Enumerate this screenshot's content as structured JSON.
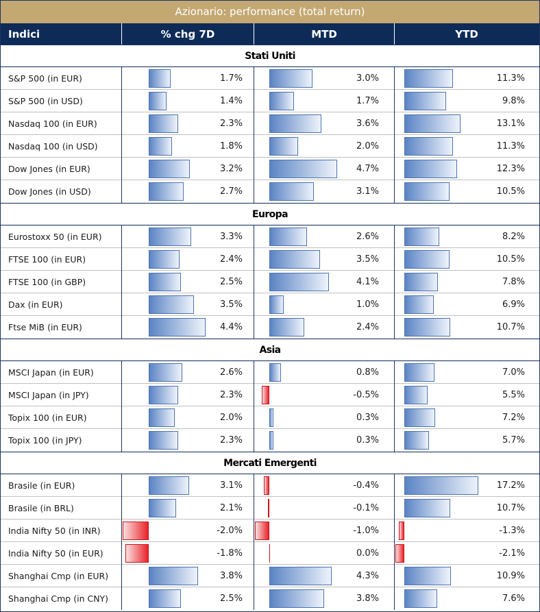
{
  "title": "Azionario: performance (total return)",
  "columns": {
    "label": "Indici",
    "c1": "% chg 7D",
    "c2": "MTD",
    "c3": "YTD"
  },
  "colors": {
    "banner": "#c3a872",
    "header": "#0e2b58",
    "positive": "#5b84c4",
    "negative": "#e8232a"
  },
  "chart_data": {
    "type": "table",
    "title": "Azionario: performance (total return)",
    "unit": "%",
    "columns": [
      "% chg 7D",
      "MTD",
      "YTD"
    ],
    "sections": [
      {
        "name": "Stati Uniti",
        "rows": [
          {
            "label": "S&P 500 (in EUR)",
            "values": [
              1.7,
              3.0,
              11.3
            ],
            "display": [
              "1.7%",
              "3.0%",
              "11.3%"
            ]
          },
          {
            "label": "S&P 500 (in USD)",
            "values": [
              1.4,
              1.7,
              9.8
            ],
            "display": [
              "1.4%",
              "1.7%",
              "9.8%"
            ]
          },
          {
            "label": "Nasdaq 100 (in EUR)",
            "values": [
              2.3,
              3.6,
              13.1
            ],
            "display": [
              "2.3%",
              "3.6%",
              "13.1%"
            ]
          },
          {
            "label": "Nasdaq 100 (in USD)",
            "values": [
              1.8,
              2.0,
              11.3
            ],
            "display": [
              "1.8%",
              "2.0%",
              "11.3%"
            ]
          },
          {
            "label": "Dow Jones (in EUR)",
            "values": [
              3.2,
              4.7,
              12.3
            ],
            "display": [
              "3.2%",
              "4.7%",
              "12.3%"
            ]
          },
          {
            "label": "Dow Jones (in USD)",
            "values": [
              2.7,
              3.1,
              10.5
            ],
            "display": [
              "2.7%",
              "3.1%",
              "10.5%"
            ]
          }
        ]
      },
      {
        "name": "Europa",
        "rows": [
          {
            "label": "Eurostoxx 50 (in EUR)",
            "values": [
              3.3,
              2.6,
              8.2
            ],
            "display": [
              "3.3%",
              "2.6%",
              "8.2%"
            ]
          },
          {
            "label": "FTSE 100 (in EUR)",
            "values": [
              2.4,
              3.5,
              10.5
            ],
            "display": [
              "2.4%",
              "3.5%",
              "10.5%"
            ]
          },
          {
            "label": "FTSE 100 (in GBP)",
            "values": [
              2.5,
              4.1,
              7.8
            ],
            "display": [
              "2.5%",
              "4.1%",
              "7.8%"
            ]
          },
          {
            "label": "Dax (in EUR)",
            "values": [
              3.5,
              1.0,
              6.9
            ],
            "display": [
              "3.5%",
              "1.0%",
              "6.9%"
            ]
          },
          {
            "label": "Ftse MiB (in EUR)",
            "values": [
              4.4,
              2.4,
              10.7
            ],
            "display": [
              "4.4%",
              "2.4%",
              "10.7%"
            ]
          }
        ]
      },
      {
        "name": "Asia",
        "rows": [
          {
            "label": "MSCI Japan (in EUR)",
            "values": [
              2.6,
              0.8,
              7.0
            ],
            "display": [
              "2.6%",
              "0.8%",
              "7.0%"
            ]
          },
          {
            "label": "MSCI Japan (in JPY)",
            "values": [
              2.3,
              -0.5,
              5.5
            ],
            "display": [
              "2.3%",
              "-0.5%",
              "5.5%"
            ]
          },
          {
            "label": "Topix 100 (in EUR)",
            "values": [
              2.0,
              0.3,
              7.2
            ],
            "display": [
              "2.0%",
              "0.3%",
              "7.2%"
            ]
          },
          {
            "label": "Topix 100 (in JPY)",
            "values": [
              2.3,
              0.3,
              5.7
            ],
            "display": [
              "2.3%",
              "0.3%",
              "5.7%"
            ]
          }
        ]
      },
      {
        "name": "Mercati Emergenti",
        "rows": [
          {
            "label": "Brasile (in EUR)",
            "values": [
              3.1,
              -0.4,
              17.2
            ],
            "display": [
              "3.1%",
              "-0.4%",
              "17.2%"
            ]
          },
          {
            "label": "Brasile (in BRL)",
            "values": [
              2.1,
              -0.1,
              10.7
            ],
            "display": [
              "2.1%",
              "-0.1%",
              "10.7%"
            ]
          },
          {
            "label": "India Nifty 50 (in INR)",
            "values": [
              -2.0,
              -1.0,
              -1.3
            ],
            "display": [
              "-2.0%",
              "-1.0%",
              "-1.3%"
            ]
          },
          {
            "label": "India Nifty 50 (in EUR)",
            "values": [
              -1.8,
              0.0,
              -2.1
            ],
            "display": [
              "-1.8%",
              "0.0%",
              "-2.1%"
            ]
          },
          {
            "label": "Shanghai Cmp (in EUR)",
            "values": [
              3.8,
              4.3,
              10.9
            ],
            "display": [
              "3.8%",
              "4.3%",
              "10.9%"
            ]
          },
          {
            "label": "Shanghai Cmp (in CNY)",
            "values": [
              2.5,
              3.8,
              7.6
            ],
            "display": [
              "2.5%",
              "3.8%",
              "7.6%"
            ]
          }
        ]
      }
    ]
  }
}
